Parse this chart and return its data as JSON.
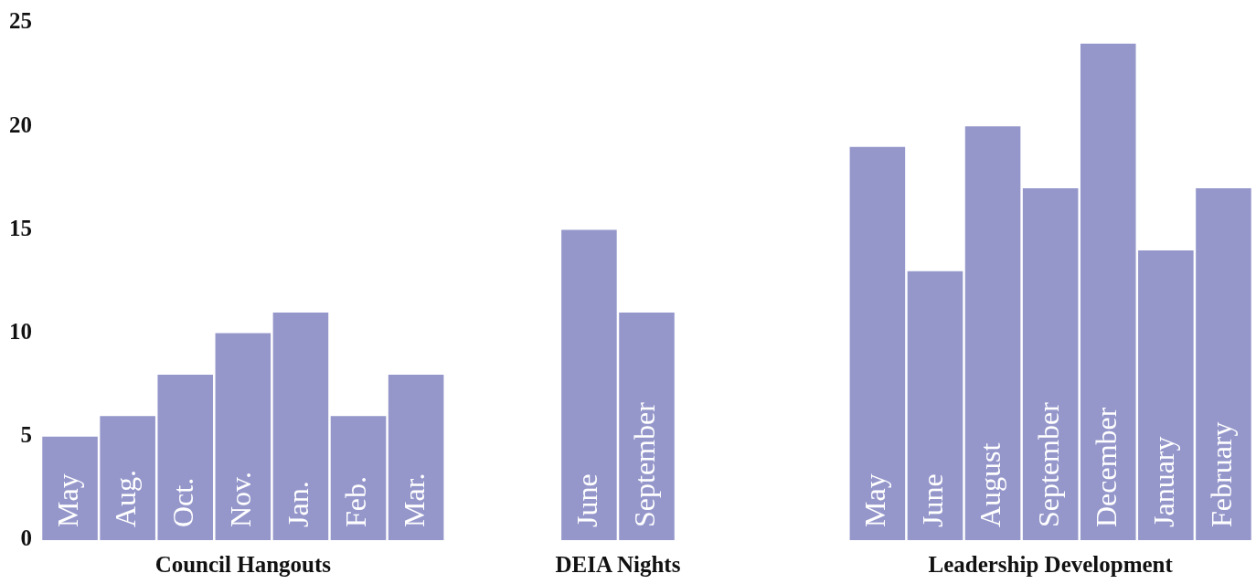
{
  "chart_data": {
    "type": "bar",
    "categories": [
      "May",
      "Aug.",
      "Oct.",
      "Nov.",
      "Jan.",
      "Feb.",
      "Mar.",
      null,
      null,
      "June",
      "September",
      null,
      null,
      null,
      "May",
      "June",
      "August",
      "September",
      "December",
      "January",
      "February"
    ],
    "values": [
      5,
      6,
      8,
      10,
      11,
      6,
      8,
      null,
      null,
      15,
      11,
      null,
      null,
      null,
      19,
      13,
      20,
      17,
      24,
      14,
      17
    ],
    "color": "#9597cb",
    "ylim": [
      0,
      25
    ],
    "yticks": [
      0,
      5,
      10,
      15,
      20,
      25
    ],
    "grid": false,
    "legend": false,
    "annotations": [
      "Council Hangouts",
      "DEIA Nights",
      "Leadership Development"
    ]
  }
}
